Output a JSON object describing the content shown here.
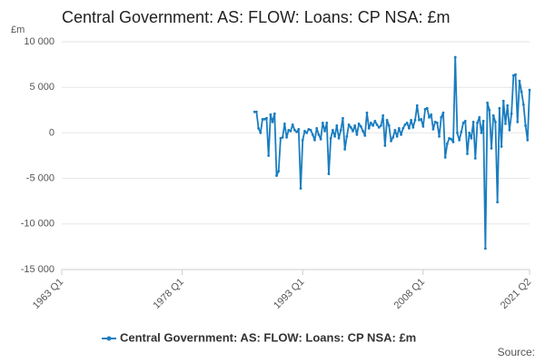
{
  "chart_data": {
    "type": "line",
    "title": "Central Government: AS: FLOW: Loans: CP NSA: £m",
    "y_label": "£m",
    "source": "Source:",
    "categories": [
      "1963 Q1",
      null,
      null,
      null,
      null,
      null,
      null,
      null,
      null,
      null,
      null,
      null,
      null,
      null,
      null,
      null,
      null,
      null,
      null,
      null,
      null,
      null,
      null,
      null,
      null,
      null,
      null,
      null,
      null,
      null,
      null,
      null,
      null,
      null,
      null,
      null,
      null,
      null,
      null,
      null,
      null,
      null,
      null,
      null,
      null,
      null,
      null,
      null,
      null,
      null,
      null,
      null,
      null,
      null,
      null,
      null,
      null,
      null,
      null,
      null,
      "1978 Q1",
      null,
      null,
      null,
      null,
      null,
      null,
      null,
      null,
      null,
      null,
      null,
      null,
      null,
      null,
      null,
      null,
      null,
      null,
      null,
      null,
      null,
      null,
      null,
      null,
      null,
      null,
      null,
      null,
      null,
      null,
      null,
      null,
      null,
      null,
      null,
      null,
      null,
      null,
      null,
      null,
      null,
      null,
      null,
      null,
      null,
      null,
      null,
      null,
      null,
      null,
      null,
      null,
      null,
      null,
      null,
      null,
      null,
      null,
      null,
      "1993 Q1",
      null,
      null,
      null,
      null,
      null,
      null,
      null,
      null,
      null,
      null,
      null,
      null,
      null,
      null,
      null,
      null,
      null,
      null,
      null,
      null,
      null,
      null,
      null,
      null,
      null,
      null,
      null,
      null,
      null,
      null,
      null,
      null,
      null,
      null,
      null,
      null,
      null,
      null,
      null,
      null,
      null,
      null,
      null,
      null,
      null,
      null,
      null,
      null,
      null,
      null,
      null,
      null,
      null,
      null,
      null,
      null,
      null,
      null,
      null,
      "2008 Q1",
      null,
      null,
      null,
      null,
      null,
      null,
      null,
      null,
      null,
      null,
      null,
      null,
      null,
      null,
      null,
      null,
      null,
      null,
      null,
      null,
      null,
      null,
      null,
      null,
      null,
      null,
      null,
      null,
      null,
      null,
      null,
      null,
      null,
      null,
      null,
      null,
      null,
      null,
      null,
      null,
      null,
      null,
      null,
      null,
      null,
      null,
      null,
      null,
      null,
      null,
      null,
      null,
      "2021 Q2"
    ],
    "series": [
      {
        "name": "Central Government: AS: FLOW: Loans: CP NSA: £m",
        "color": "#1a7dc0",
        "values": [
          null,
          null,
          null,
          null,
          null,
          null,
          null,
          null,
          null,
          null,
          null,
          null,
          null,
          null,
          null,
          null,
          null,
          null,
          null,
          null,
          null,
          null,
          null,
          null,
          null,
          null,
          null,
          null,
          null,
          null,
          null,
          null,
          null,
          null,
          null,
          null,
          null,
          null,
          null,
          null,
          null,
          null,
          null,
          null,
          null,
          null,
          null,
          null,
          null,
          null,
          null,
          null,
          null,
          null,
          null,
          null,
          null,
          null,
          null,
          null,
          null,
          null,
          null,
          null,
          null,
          null,
          null,
          null,
          null,
          null,
          null,
          null,
          null,
          null,
          null,
          null,
          null,
          null,
          null,
          null,
          null,
          null,
          null,
          null,
          null,
          null,
          null,
          null,
          null,
          null,
          null,
          null,
          null,
          null,
          null,
          null,
          2300,
          2300,
          500,
          0,
          1500,
          1500,
          1600,
          -2500,
          2000,
          1200,
          2100,
          -4700,
          -4200,
          -600,
          -500,
          1000,
          -500,
          300,
          200,
          900,
          300,
          100,
          400,
          -6100,
          -800,
          200,
          0,
          400,
          300,
          -200,
          -800,
          500,
          -200,
          -700,
          1100,
          200,
          1100,
          -4500,
          -600,
          300,
          -400,
          800,
          -600,
          300,
          1600,
          -1800,
          -400,
          900,
          600,
          200,
          800,
          -200,
          1000,
          700,
          200,
          -300,
          2200,
          500,
          1100,
          800,
          1300,
          900,
          600,
          800,
          1900,
          -1400,
          1400,
          800,
          -900,
          -500,
          300,
          -400,
          500,
          -200,
          500,
          900,
          1100,
          500,
          1400,
          600,
          1400,
          3000,
          1400,
          1500,
          700,
          2600,
          2700,
          1700,
          2000,
          400,
          1200,
          1100,
          -400,
          1700,
          2200,
          -2700,
          -1200,
          -600,
          -700,
          -1000,
          8300,
          0,
          -800,
          100,
          1100,
          1300,
          -2300,
          0,
          -600,
          1200,
          -2800,
          1100,
          1700,
          0,
          1300,
          -12700,
          3300,
          2500,
          -1700,
          1900,
          1200,
          -7600,
          2700,
          -1500,
          3500,
          1000,
          3000,
          300,
          2100,
          6300,
          6400,
          1200,
          5700,
          4500,
          3100,
          800,
          -800,
          4700
        ]
      }
    ],
    "ylim": [
      -15000,
      10000
    ],
    "yticks": [
      {
        "value": -15000,
        "label": "-15 000"
      },
      {
        "value": -10000,
        "label": "-10 000"
      },
      {
        "value": -5000,
        "label": "-5 000"
      },
      0,
      {
        "value": 5000,
        "label": "5 000"
      },
      {
        "value": 10000,
        "label": "10 000"
      }
    ],
    "grid": true
  }
}
